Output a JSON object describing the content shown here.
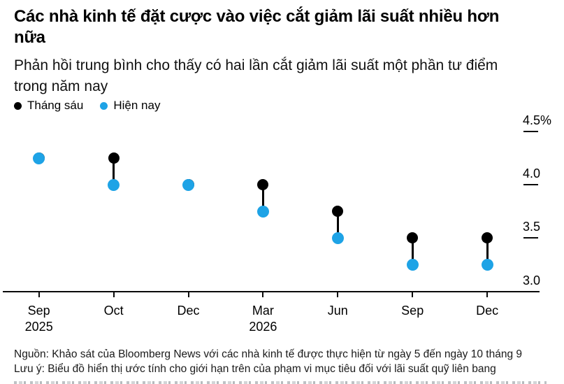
{
  "title": {
    "text": "Các nhà kinh tế đặt cược vào việc cắt giảm lãi suất nhiều hơn nữa",
    "lines": [
      "Các nhà kinh tế đặt cược vào việc cắt giảm lãi suất nhiều hơn",
      "nữa"
    ]
  },
  "subtitle": {
    "text": "Phản hồi trung bình cho thấy có hai lần cắt giảm lãi suất một phần tư điểm trong năm nay",
    "lines": [
      "Phản hồi trung bình cho thấy có hai lần cắt giảm lãi suất một phần tư điểm",
      "trong năm nay"
    ]
  },
  "legend": {
    "items": [
      {
        "label": "Tháng sáu",
        "color": "#000000"
      },
      {
        "label": "Hiện nay",
        "color": "#1ea3e6"
      }
    ]
  },
  "colors": {
    "black_series": "#000000",
    "blue_series": "#1ea3e6",
    "axis": "#0a0a0a",
    "background": "#ffffff"
  },
  "chart_data": {
    "type": "scatter",
    "subtype": "dumbbell",
    "title": "Các nhà kinh tế đặt cược vào việc cắt giảm lãi suất nhiều hơn nữa",
    "subtitle": "Phản hồi trung bình cho thấy có hai lần cắt giảm lãi suất một phần tư điểm trong năm nay",
    "categories": [
      "Sep 2025",
      "Oct 2025",
      "Dec 2025",
      "Mar 2026",
      "Jun 2026",
      "Sep 2026",
      "Dec 2026"
    ],
    "x_tick_labels": [
      [
        "Sep",
        "2025"
      ],
      [
        "Oct"
      ],
      [
        "Dec"
      ],
      [
        "Mar",
        "2026"
      ],
      [
        "Jun"
      ],
      [
        "Sep"
      ],
      [
        "Dec"
      ]
    ],
    "series": [
      {
        "name": "Tháng sáu",
        "color": "#000000",
        "values": [
          4.25,
          4.25,
          4.0,
          4.0,
          3.75,
          3.5,
          3.5
        ]
      },
      {
        "name": "Hiện nay",
        "color": "#1ea3e6",
        "values": [
          4.25,
          4.0,
          4.0,
          3.75,
          3.5,
          3.25,
          3.25
        ]
      }
    ],
    "ylim": [
      3.0,
      4.5
    ],
    "yticks": [
      {
        "value": 4.5,
        "label": "4.5%"
      },
      {
        "value": 4.0,
        "label": "4.0"
      },
      {
        "value": 3.5,
        "label": "3.5"
      },
      {
        "value": 3.0,
        "label": "3.0"
      }
    ],
    "unit": "%",
    "grid": false,
    "legend_position": "top-left"
  },
  "footer": {
    "lines": [
      "Nguồn: Khảo sát của Bloomberg News với các nhà kinh tế được thực hiện từ ngày 5 đến ngày 10 tháng 9",
      "Lưu ý: Biểu đồ hiển thị ước tính cho giới hạn trên của phạm vi mục tiêu đối với lãi suất quỹ liên bang"
    ]
  }
}
